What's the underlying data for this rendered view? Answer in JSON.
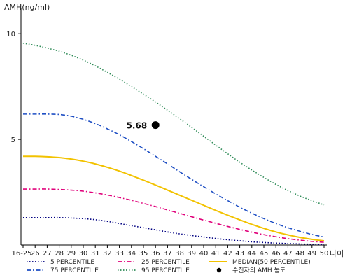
{
  "chart_data": {
    "type": "line",
    "ylabel": "AMH(ng/ml)",
    "xlabel": "나이",
    "ylim": [
      0,
      11
    ],
    "y_ticks": [
      5,
      10
    ],
    "categories": [
      "16-25",
      "26",
      "27",
      "28",
      "29",
      "30",
      "31",
      "32",
      "33",
      "34",
      "35",
      "36",
      "37",
      "38",
      "39",
      "40",
      "41",
      "42",
      "43",
      "44",
      "45",
      "46",
      "47",
      "48",
      "49",
      "50"
    ],
    "grid": false,
    "series": [
      {
        "name": "5 PERCENTILE",
        "color": "#000080",
        "dash": "dotted",
        "values": [
          1.3,
          1.3,
          1.3,
          1.3,
          1.28,
          1.25,
          1.2,
          1.12,
          1.02,
          0.92,
          0.82,
          0.72,
          0.62,
          0.53,
          0.45,
          0.38,
          0.31,
          0.25,
          0.2,
          0.15,
          0.12,
          0.09,
          0.07,
          0.05,
          0.04,
          0.03
        ]
      },
      {
        "name": "25 PERCENTILE",
        "color": "#e0007a",
        "dash": "dashdot",
        "values": [
          2.65,
          2.65,
          2.65,
          2.63,
          2.6,
          2.55,
          2.47,
          2.37,
          2.25,
          2.12,
          1.97,
          1.82,
          1.66,
          1.5,
          1.34,
          1.18,
          1.03,
          0.88,
          0.74,
          0.61,
          0.49,
          0.39,
          0.3,
          0.23,
          0.17,
          0.13
        ]
      },
      {
        "name": "MEDIAN(50 PERCENTILE)",
        "color": "#f2c200",
        "dash": "solid",
        "values": [
          4.2,
          4.2,
          4.18,
          4.14,
          4.07,
          3.97,
          3.84,
          3.68,
          3.5,
          3.29,
          3.07,
          2.84,
          2.6,
          2.36,
          2.12,
          1.88,
          1.64,
          1.41,
          1.19,
          0.98,
          0.79,
          0.62,
          0.48,
          0.36,
          0.27,
          0.2
        ]
      },
      {
        "name": "75 PERCENTILE",
        "color": "#1f4fc4",
        "dash": "dashdot",
        "values": [
          6.2,
          6.2,
          6.2,
          6.18,
          6.1,
          5.95,
          5.75,
          5.5,
          5.22,
          4.9,
          4.56,
          4.2,
          3.84,
          3.47,
          3.11,
          2.76,
          2.42,
          2.1,
          1.79,
          1.51,
          1.25,
          1.02,
          0.82,
          0.65,
          0.5,
          0.38
        ]
      },
      {
        "name": "95 PERCENTILE",
        "color": "#2e8b57",
        "dash": "dotted",
        "values": [
          9.55,
          9.45,
          9.32,
          9.17,
          8.98,
          8.75,
          8.48,
          8.17,
          7.85,
          7.5,
          7.14,
          6.77,
          6.38,
          5.98,
          5.57,
          5.15,
          4.73,
          4.32,
          3.92,
          3.55,
          3.2,
          2.87,
          2.58,
          2.32,
          2.1,
          1.9
        ]
      }
    ],
    "marker": {
      "name": "수진자의 AMH 농도",
      "value_label": "5.68",
      "x_category": "36",
      "y": 5.68,
      "color": "#000000"
    },
    "legend_position": "bottom"
  }
}
